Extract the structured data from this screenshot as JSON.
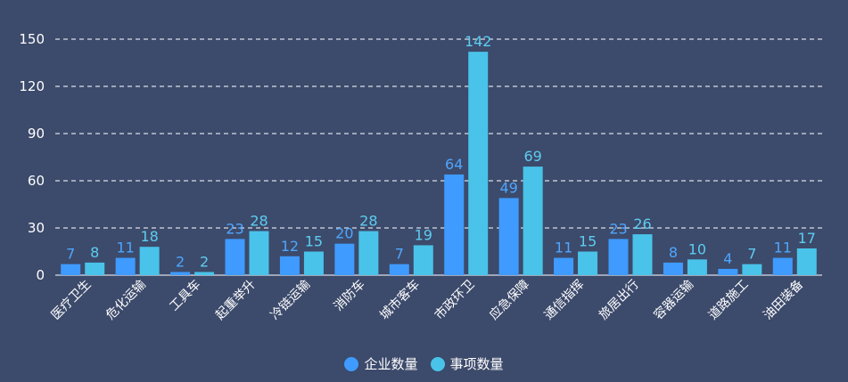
{
  "chart_data": {
    "type": "bar",
    "categories": [
      "医疗卫生",
      "危化运输",
      "工具车",
      "起重举升",
      "冷链运输",
      "消防车",
      "城市客车",
      "市政环卫",
      "应急保障",
      "通信指挥",
      "旅居出行",
      "容器运输",
      "道路施工",
      "油田装备"
    ],
    "series": [
      {
        "name": "企业数量",
        "color": "#3f9bff",
        "values": [
          7,
          11,
          2,
          23,
          12,
          20,
          7,
          64,
          49,
          11,
          23,
          8,
          4,
          11
        ]
      },
      {
        "name": "事项数量",
        "color": "#49c3ea",
        "values": [
          8,
          18,
          2,
          28,
          15,
          28,
          19,
          142,
          69,
          15,
          26,
          10,
          7,
          17
        ]
      }
    ],
    "yticks": [
      0,
      30,
      60,
      90,
      120,
      150
    ],
    "ylim": [
      0,
      150
    ],
    "grid": true,
    "legend": "bottom-center",
    "colors": {
      "background": "#3c4a6b",
      "axis_text": "#ffffff",
      "grid": "#d9dde6",
      "label_series_1": "#4ea6ff",
      "label_series_2": "#5ccdf0"
    }
  }
}
